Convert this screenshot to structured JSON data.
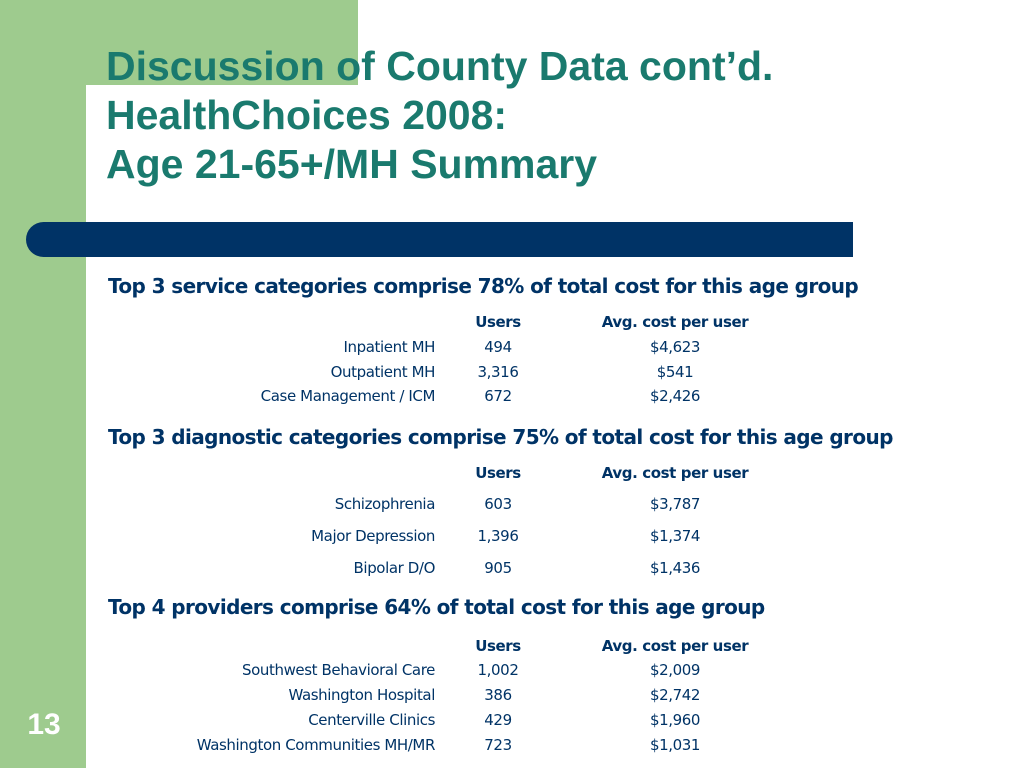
{
  "slide": {
    "title_lines": [
      "Discussion of County Data cont’d.",
      "HealthChoices 2008:",
      "Age 21-65+/MH Summary"
    ],
    "slide_number": "13"
  },
  "sections": [
    {
      "heading": "Top 3 service categories comprise 78% of total cost for this age group",
      "col_users": "Users",
      "col_cost": "Avg. cost per user",
      "rows": [
        {
          "label": "Inpatient MH",
          "users": "494",
          "cost": "$4,623"
        },
        {
          "label": "Outpatient MH",
          "users": "3,316",
          "cost": "$541"
        },
        {
          "label": "Case Management / ICM",
          "users": "672",
          "cost": "$2,426"
        }
      ]
    },
    {
      "heading": "Top 3 diagnostic categories comprise 75% of total cost for this age group",
      "col_users": "Users",
      "col_cost": "Avg. cost per user",
      "rows": [
        {
          "label": "Schizophrenia",
          "users": "603",
          "cost": "$3,787"
        },
        {
          "label": "Major Depression",
          "users": "1,396",
          "cost": "$1,374"
        },
        {
          "label": "Bipolar D/O",
          "users": "905",
          "cost": "$1,436"
        }
      ]
    },
    {
      "heading": "Top 4 providers comprise 64% of total cost for this age group",
      "col_users": "Users",
      "col_cost": "Avg. cost per user",
      "rows": [
        {
          "label": "Southwest Behavioral Care",
          "users": "1,002",
          "cost": "$2,009"
        },
        {
          "label": "Washington Hospital",
          "users": "386",
          "cost": "$2,742"
        },
        {
          "label": "Centerville Clinics",
          "users": "429",
          "cost": "$1,960"
        },
        {
          "label": "Washington Communities MH/MR",
          "users": "723",
          "cost": "$1,031"
        }
      ]
    }
  ],
  "colors": {
    "sidebar_green": "#9ecb8e",
    "title_teal": "#1a7a6e",
    "navy": "#003366"
  }
}
